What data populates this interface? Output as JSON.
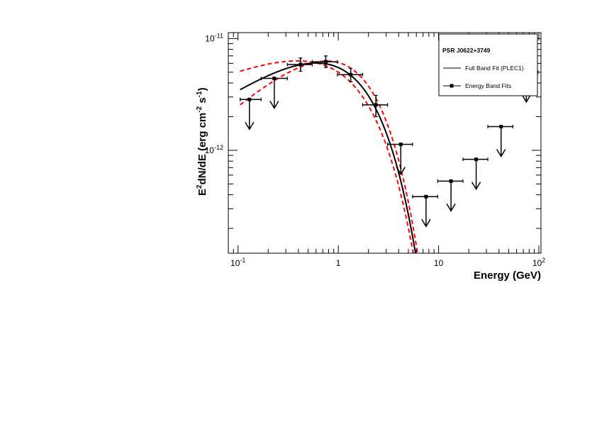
{
  "chart_data": {
    "type": "scatter",
    "title": "",
    "xlabel": "Energy (GeV)",
    "ylabel_parts": [
      "E",
      "2",
      "dN/dE (erg cm",
      "-2",
      " s",
      "-1",
      ")"
    ],
    "x_scale": "log",
    "y_scale": "log",
    "xlim": [
      0.08,
      105
    ],
    "ylim": [
      1.2e-13,
      1.13e-11
    ],
    "x_ticks": [
      {
        "value": 0.1,
        "base": "10",
        "exp": "-1"
      },
      {
        "value": 1,
        "base": "1",
        "exp": ""
      },
      {
        "value": 10,
        "base": "10",
        "exp": ""
      },
      {
        "value": 100,
        "base": "10",
        "exp": "2"
      }
    ],
    "y_ticks": [
      {
        "value": 1e-12,
        "base": "10",
        "exp": "-12"
      },
      {
        "value": 1e-11,
        "base": "10",
        "exp": "-11"
      }
    ],
    "grid": false,
    "legend_position": "top-right",
    "legend": {
      "title": "PSR J0622+3749",
      "entries": [
        {
          "label": "Full Band Fit (PLEC1)",
          "style": "line",
          "color": "#000000"
        },
        {
          "label": "Energy Band Fits",
          "style": "line-marker",
          "color": "#000000"
        }
      ]
    },
    "model": {
      "type": "PLEC1",
      "energy_range": [
        0.105,
        100
      ],
      "best_fit": {
        "norm_at_1GeV": 5.5e-12,
        "index": 1.4,
        "cutoff_GeV": 1.0,
        "color": "#000000",
        "style": "solid"
      },
      "upper_band": {
        "norm_at_1GeV": 6.1e-12,
        "index": 1.2,
        "cutoff_GeV": 0.96,
        "color": "#ff0000",
        "style": "dashed"
      },
      "lower_band": {
        "norm_at_1GeV": 5e-12,
        "index": 1.63,
        "cutoff_GeV": 1.05,
        "color": "#ff0000",
        "style": "dashed"
      }
    },
    "points": [
      {
        "x": 0.13,
        "y": 2.85e-12,
        "xerr": [
          0.105,
          0.17
        ],
        "yerr": null,
        "upper_limit": true
      },
      {
        "x": 0.23,
        "y": 4.4e-12,
        "xerr": [
          0.17,
          0.31
        ],
        "yerr": null,
        "upper_limit": true
      },
      {
        "x": 0.42,
        "y": 5.85e-12,
        "xerr": [
          0.31,
          0.55
        ],
        "yerr": [
          5.1e-12,
          6.7e-12
        ],
        "upper_limit": false
      },
      {
        "x": 0.75,
        "y": 6.2e-12,
        "xerr": [
          0.55,
          0.98
        ],
        "yerr": [
          5.5e-12,
          7e-12
        ],
        "upper_limit": false
      },
      {
        "x": 1.33,
        "y": 4.75e-12,
        "xerr": [
          0.98,
          1.75
        ],
        "yerr": [
          4.1e-12,
          5.4e-12
        ],
        "upper_limit": false
      },
      {
        "x": 2.37,
        "y": 2.55e-12,
        "xerr": [
          1.75,
          3.1
        ],
        "yerr": [
          2e-12,
          3.1e-12
        ],
        "upper_limit": false
      },
      {
        "x": 4.2,
        "y": 1.13e-12,
        "xerr": [
          3.1,
          5.5
        ],
        "yerr": null,
        "upper_limit": true
      },
      {
        "x": 7.5,
        "y": 3.85e-13,
        "xerr": [
          5.5,
          9.8
        ],
        "yerr": null,
        "upper_limit": true
      },
      {
        "x": 13.3,
        "y": 5.3e-13,
        "xerr": [
          9.8,
          17.5
        ],
        "yerr": null,
        "upper_limit": true
      },
      {
        "x": 23.7,
        "y": 8.3e-13,
        "xerr": [
          17.5,
          31
        ],
        "yerr": null,
        "upper_limit": true
      },
      {
        "x": 42,
        "y": 1.63e-12,
        "xerr": [
          31,
          55
        ],
        "yerr": null,
        "upper_limit": true
      },
      {
        "x": 75,
        "y": 5e-12,
        "xerr": [
          55,
          98
        ],
        "yerr": null,
        "upper_limit": true
      }
    ]
  }
}
